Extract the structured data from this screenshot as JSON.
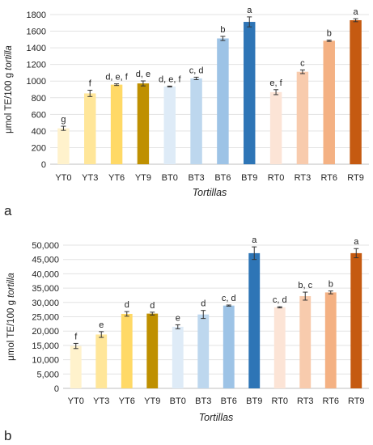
{
  "chart_data": [
    {
      "type": "bar",
      "panel_label": "a",
      "categories": [
        "YT0",
        "YT3",
        "YT6",
        "YT9",
        "BT0",
        "BT3",
        "BT6",
        "BT9",
        "RT0",
        "RT3",
        "RT6",
        "RT9"
      ],
      "values": [
        432,
        852,
        957,
        972,
        935,
        1032,
        1513,
        1712,
        867,
        1112,
        1485,
        1732
      ],
      "errors": [
        25,
        38,
        10,
        30,
        5,
        15,
        25,
        60,
        30,
        22,
        8,
        18
      ],
      "significance": [
        "g",
        "f",
        "d, e, f",
        "d, e",
        "d, e, f",
        "c, d",
        "b",
        "a",
        "e, f",
        "c",
        "b",
        "a"
      ],
      "colors": [
        "#fff2cc",
        "#ffe699",
        "#ffd966",
        "#bf9000",
        "#deebf7",
        "#bdd7ee",
        "#9dc3e6",
        "#2e75b6",
        "#fce4d6",
        "#f8cbad",
        "#f4b183",
        "#c55a11"
      ],
      "ylabel_prefix": "μmol TE/100 g ",
      "ylabel_italic": "tortilla",
      "xlabel": "Tortillas",
      "ylim": [
        0,
        1800
      ],
      "yticks": [
        0,
        200,
        400,
        600,
        800,
        1000,
        1200,
        1400,
        1600,
        1800
      ],
      "ytick_labels": [
        "0",
        "200",
        "400",
        "600",
        "800",
        "1000",
        "1200",
        "1400",
        "1600",
        "1800"
      ]
    },
    {
      "type": "bar",
      "panel_label": "b",
      "categories": [
        "YT0",
        "YT3",
        "YT6",
        "YT9",
        "BT0",
        "BT3",
        "BT6",
        "BT9",
        "RT0",
        "RT3",
        "RT6",
        "RT9"
      ],
      "values": [
        14800,
        18800,
        26000,
        26100,
        21500,
        25800,
        28900,
        47200,
        28300,
        32200,
        33500,
        47200
      ],
      "errors": [
        900,
        1000,
        800,
        500,
        700,
        1400,
        200,
        2200,
        200,
        1400,
        500,
        1600
      ],
      "significance": [
        "f",
        "e",
        "d",
        "d",
        "e",
        "d",
        "c, d",
        "a",
        "c, d",
        "b, c",
        "b",
        "a"
      ],
      "colors": [
        "#fff2cc",
        "#ffe699",
        "#ffd966",
        "#bf9000",
        "#deebf7",
        "#bdd7ee",
        "#9dc3e6",
        "#2e75b6",
        "#fce4d6",
        "#f8cbad",
        "#f4b183",
        "#c55a11"
      ],
      "ylabel_prefix": "μmol TE/100 g ",
      "ylabel_italic": "tortilla",
      "xlabel": "Tortillas",
      "ylim": [
        0,
        50000
      ],
      "yticks": [
        0,
        5000,
        10000,
        15000,
        20000,
        25000,
        30000,
        35000,
        40000,
        45000,
        50000
      ],
      "ytick_labels": [
        "0",
        "5,000",
        "10,000",
        "15,000",
        "20,000",
        "25,000",
        "30,000",
        "35,000",
        "40,000",
        "45,000",
        "50,000"
      ]
    }
  ]
}
